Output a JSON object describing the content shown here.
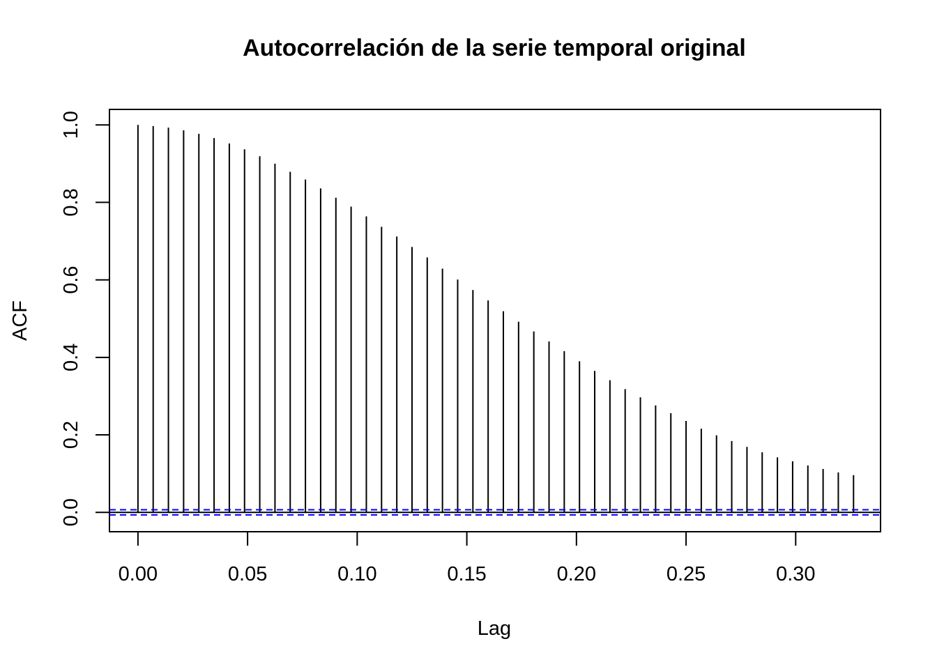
{
  "chart_data": {
    "type": "bar",
    "subtype": "acf-lollipop",
    "title": "Autocorrelación de la serie temporal original",
    "xlabel": "Lag",
    "ylabel": "ACF",
    "xlim": [
      -0.013,
      0.3387
    ],
    "ylim": [
      -0.05,
      1.04
    ],
    "x_ticks": [
      0.0,
      0.05,
      0.1,
      0.15,
      0.2,
      0.25,
      0.3
    ],
    "x_tick_labels": [
      "0.00",
      "0.05",
      "0.10",
      "0.15",
      "0.20",
      "0.25",
      "0.30"
    ],
    "y_ticks": [
      0.0,
      0.2,
      0.4,
      0.6,
      0.8,
      1.0
    ],
    "y_tick_labels": [
      "0.0",
      "0.2",
      "0.4",
      "0.6",
      "0.8",
      "1.0"
    ],
    "grid": false,
    "zero_line": 0.0,
    "confidence_bounds": [
      0.0066,
      -0.0066
    ],
    "colors": {
      "bars": "#000000",
      "confidence": "#0000ff",
      "axes": "#000000"
    },
    "lags": [
      0.0,
      0.00694,
      0.01389,
      0.02083,
      0.02778,
      0.03472,
      0.04167,
      0.04861,
      0.05556,
      0.0625,
      0.06944,
      0.07639,
      0.08333,
      0.09028,
      0.09722,
      0.10417,
      0.11111,
      0.11806,
      0.125,
      0.13194,
      0.13889,
      0.14583,
      0.15278,
      0.15972,
      0.16667,
      0.17361,
      0.18056,
      0.1875,
      0.19444,
      0.20139,
      0.20833,
      0.21528,
      0.22222,
      0.22917,
      0.23611,
      0.24306,
      0.25,
      0.25694,
      0.26389,
      0.27083,
      0.27778,
      0.28472,
      0.29167,
      0.29861,
      0.30556,
      0.3125,
      0.31944,
      0.32639
    ],
    "values": [
      1.0,
      0.997,
      0.993,
      0.986,
      0.977,
      0.966,
      0.952,
      0.937,
      0.919,
      0.9,
      0.879,
      0.859,
      0.836,
      0.812,
      0.789,
      0.764,
      0.737,
      0.712,
      0.685,
      0.658,
      0.629,
      0.601,
      0.574,
      0.547,
      0.519,
      0.492,
      0.467,
      0.441,
      0.416,
      0.39,
      0.365,
      0.341,
      0.318,
      0.297,
      0.276,
      0.256,
      0.236,
      0.216,
      0.199,
      0.184,
      0.169,
      0.155,
      0.142,
      0.132,
      0.121,
      0.112,
      0.103,
      0.096
    ]
  }
}
